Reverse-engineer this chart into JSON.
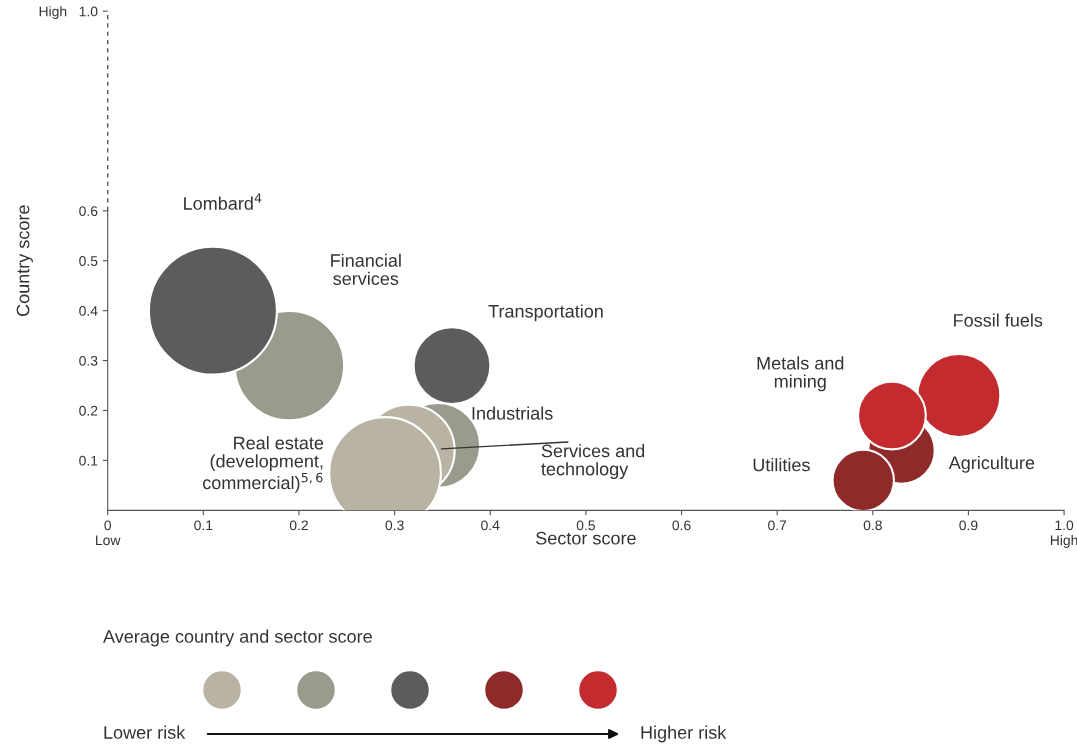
{
  "chart_data": {
    "type": "bubble",
    "xlabel": "Sector score",
    "ylabel": "Country score",
    "xlim": [
      0,
      1.0
    ],
    "ylim": [
      0,
      1.0
    ],
    "xticks": [
      {
        "value": 0,
        "label": "0\nLow"
      },
      0.1,
      0.2,
      0.3,
      0.4,
      0.5,
      0.6,
      0.7,
      0.8,
      0.9,
      {
        "value": 1.0,
        "label": "1.0\nHigh"
      }
    ],
    "yticks": [
      0.1,
      0.2,
      0.3,
      0.4,
      0.5,
      0.6,
      {
        "value": 1.0,
        "label": "High   1.0"
      }
    ],
    "legend": "bottom",
    "legend_title": "Average country and sector score",
    "annotations": [
      "Lower risk",
      "Higher risk"
    ],
    "series": [
      {
        "name": "Financial\nservices",
        "color": "#9a9a8d",
        "x": [
          0.19
        ],
        "values": [
          0.29
        ],
        "sizes": [
          0.73
        ]
      },
      {
        "name": "Lombard$^{4}$",
        "color": "#5b5d5c",
        "x": [
          0.11
        ],
        "values": [
          0.4
        ],
        "sizes": [
          1
        ]
      },
      {
        "name": "Transportation",
        "color": "#5b5d5c",
        "x": [
          0.36
        ],
        "values": [
          0.29
        ],
        "sizes": [
          0.36
        ]
      },
      {
        "name": "Industrials",
        "color": "#9a9a8d",
        "x": [
          0.345
        ],
        "values": [
          0.13
        ],
        "sizes": [
          0.44
        ]
      },
      {
        "name": "Services and\ntechnology",
        "color": "#b8b3a3",
        "x": [
          0.315
        ],
        "values": [
          0.12
        ],
        "sizes": [
          0.51
        ]
      },
      {
        "name": "Real estate\n(development,\ncommercial)$^{5,6}$",
        "color": "#b8b3a3",
        "x": [
          0.29
        ],
        "values": [
          0.075
        ],
        "sizes": [
          0.76
        ]
      },
      {
        "name": "Fossil fuels",
        "color": "#c42b2e",
        "x": [
          0.89
        ],
        "values": [
          0.23
        ],
        "sizes": [
          0.42
        ]
      },
      {
        "name": "Agriculture",
        "color": "#8f2a2a",
        "x": [
          0.83
        ],
        "values": [
          0.12
        ],
        "sizes": [
          0.27
        ]
      },
      {
        "name": "Utilities",
        "color": "#8f2a2a",
        "x": [
          0.79
        ],
        "values": [
          0.06
        ],
        "sizes": [
          0.23
        ]
      },
      {
        "name": "Metals and\nmining",
        "color": "#c42b2e",
        "x": [
          0.82
        ],
        "values": [
          0.19
        ],
        "sizes": [
          0.28
        ]
      }
    ]
  }
}
